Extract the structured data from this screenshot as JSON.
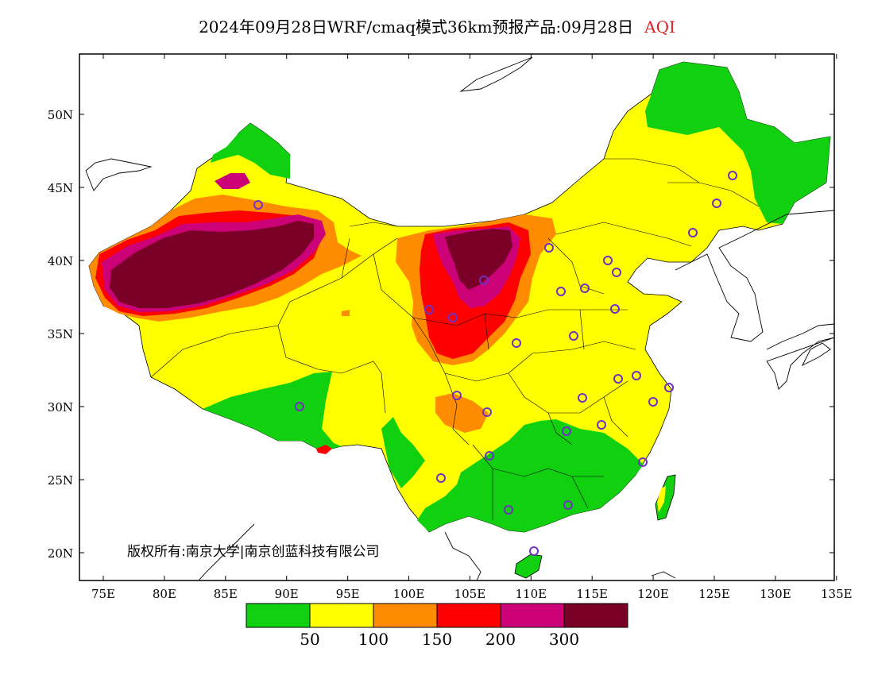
{
  "title": {
    "main": "2024年09月28日WRF/cmaq模式36km预报产品:09月28日",
    "variable": "AQI"
  },
  "copyright": "版权所有:南京大学|南京创蓝科技有限公司",
  "axes": {
    "x_ticks": [
      "75E",
      "80E",
      "85E",
      "90E",
      "95E",
      "100E",
      "105E",
      "110E",
      "115E",
      "120E",
      "125E",
      "130E",
      "135E"
    ],
    "y_ticks": [
      "50N",
      "45N",
      "40N",
      "35N",
      "30N",
      "25N",
      "20N"
    ]
  },
  "colorbar": {
    "colors": [
      "#10d010",
      "#ffff00",
      "#ff8c00",
      "#ff0000",
      "#cc0077",
      "#7a0028"
    ],
    "labels": [
      "50",
      "100",
      "150",
      "200",
      "300"
    ]
  },
  "colors": {
    "good": "#10d010",
    "moderate": "#ffff00",
    "light": "#ff8c00",
    "medium": "#ff0000",
    "heavy": "#cc0077",
    "severe": "#7a0028",
    "station": "#7030c0"
  }
}
